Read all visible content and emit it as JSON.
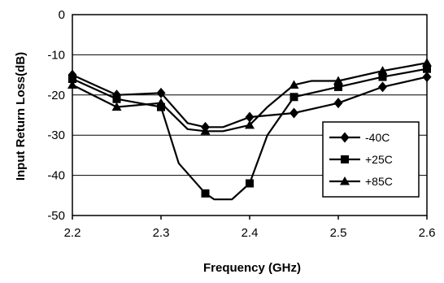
{
  "chart_data": {
    "type": "line",
    "title": "",
    "xlabel": "Frequency (GHz)",
    "ylabel": "Input Return Loss(dB)",
    "xlim": [
      2.2,
      2.6
    ],
    "ylim": [
      -50,
      0
    ],
    "x_ticks": [
      "2.2",
      "2.3",
      "2.4",
      "2.5",
      "2.6"
    ],
    "y_ticks": [
      "0",
      "-10",
      "-20",
      "-30",
      "-40",
      "-50"
    ],
    "grid": "horizontal",
    "legend_position": "right",
    "marker_color": "#000000",
    "line_color": "#000000",
    "series": [
      {
        "name": "-40C",
        "marker": "diamond",
        "x": [
          2.2,
          2.25,
          2.3,
          2.35,
          2.4,
          2.45,
          2.5,
          2.55,
          2.6
        ],
        "y": [
          -15,
          -20,
          -19.5,
          -28,
          -25.5,
          -24.5,
          -22,
          -18,
          -15.5
        ],
        "line": [
          [
            2.2,
            -15
          ],
          [
            2.25,
            -20
          ],
          [
            2.3,
            -19.5
          ],
          [
            2.33,
            -27
          ],
          [
            2.35,
            -28
          ],
          [
            2.37,
            -28
          ],
          [
            2.4,
            -25.5
          ],
          [
            2.45,
            -24.5
          ],
          [
            2.5,
            -22
          ],
          [
            2.55,
            -18
          ],
          [
            2.6,
            -15.5
          ]
        ]
      },
      {
        "name": "+25C",
        "marker": "square",
        "x": [
          2.2,
          2.25,
          2.3,
          2.35,
          2.4,
          2.45,
          2.5,
          2.55,
          2.6
        ],
        "y": [
          -16,
          -21,
          -23,
          -44.5,
          -42,
          -20.5,
          -18,
          -15.5,
          -13.5
        ],
        "line": [
          [
            2.2,
            -16
          ],
          [
            2.25,
            -21
          ],
          [
            2.3,
            -23
          ],
          [
            2.32,
            -37
          ],
          [
            2.35,
            -44.5
          ],
          [
            2.36,
            -46
          ],
          [
            2.38,
            -46
          ],
          [
            2.4,
            -42
          ],
          [
            2.42,
            -30
          ],
          [
            2.45,
            -20.5
          ],
          [
            2.5,
            -18
          ],
          [
            2.55,
            -15.5
          ],
          [
            2.6,
            -13.5
          ]
        ]
      },
      {
        "name": "+85C",
        "marker": "triangle",
        "x": [
          2.2,
          2.25,
          2.3,
          2.35,
          2.4,
          2.45,
          2.5,
          2.55,
          2.6
        ],
        "y": [
          -17.5,
          -23,
          -22,
          -29,
          -27.5,
          -17.5,
          -16.5,
          -14,
          -12
        ],
        "line": [
          [
            2.2,
            -17.5
          ],
          [
            2.25,
            -23
          ],
          [
            2.3,
            -22
          ],
          [
            2.33,
            -28.5
          ],
          [
            2.35,
            -29
          ],
          [
            2.37,
            -29
          ],
          [
            2.4,
            -27.5
          ],
          [
            2.42,
            -23
          ],
          [
            2.45,
            -17.5
          ],
          [
            2.47,
            -16.5
          ],
          [
            2.5,
            -16.5
          ],
          [
            2.55,
            -14
          ],
          [
            2.6,
            -12
          ]
        ]
      }
    ]
  }
}
